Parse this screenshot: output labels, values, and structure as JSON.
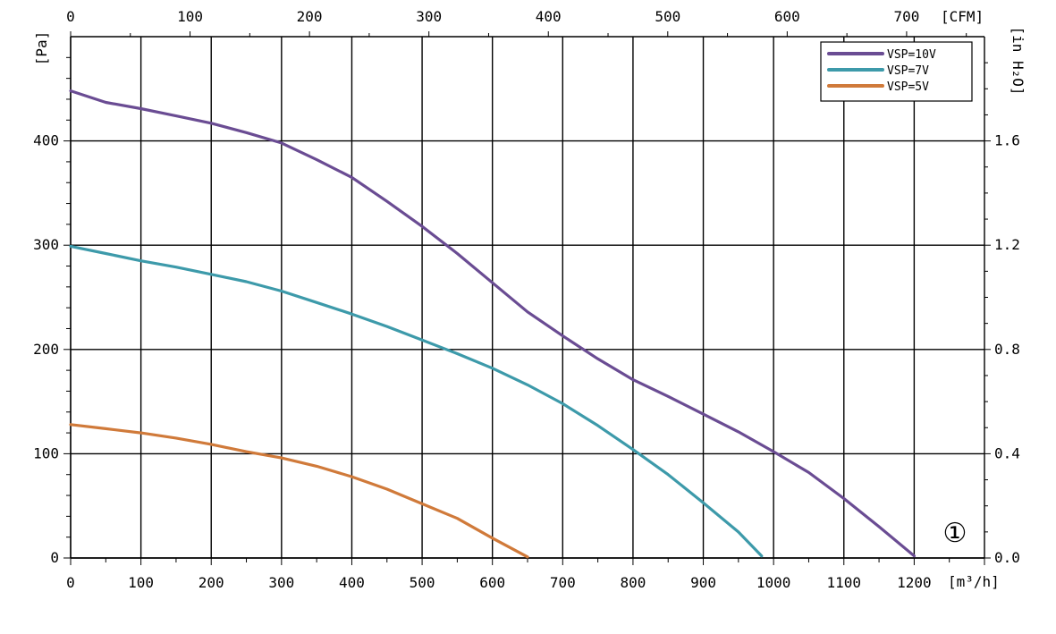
{
  "chart_data": {
    "type": "line",
    "x_label": "[m³/h]",
    "y_label": "[Pa]",
    "secondary_x_label": "[CFM]",
    "secondary_y_label": "[in H₂O]",
    "xlim": [
      0,
      1300
    ],
    "ylim": [
      0,
      500
    ],
    "secondary_xlim": [
      0,
      765.2
    ],
    "secondary_ylim": [
      0,
      2.0
    ],
    "x_ticks": [
      0,
      100,
      200,
      300,
      400,
      500,
      600,
      700,
      800,
      900,
      1000,
      1100,
      1200
    ],
    "y_ticks": [
      0,
      100,
      200,
      300,
      400
    ],
    "secondary_x_ticks": [
      0,
      100,
      200,
      300,
      400,
      500,
      600,
      700
    ],
    "secondary_y_ticks": [
      "0.0",
      "0.4",
      "0.8",
      "1.2",
      "1.6"
    ],
    "secondary_y_tick_values": [
      0,
      0.4,
      0.8,
      1.2,
      1.6
    ],
    "grid": true,
    "legend_position": "top-right",
    "curve_number": "①",
    "series": [
      {
        "name": "VSP=10V",
        "color": "#6a4c93",
        "x": [
          0,
          50,
          100,
          150,
          200,
          250,
          300,
          350,
          400,
          450,
          500,
          550,
          600,
          650,
          700,
          750,
          800,
          850,
          900,
          950,
          1000,
          1050,
          1100,
          1150,
          1200
        ],
        "y": [
          448,
          437,
          431,
          424,
          417,
          408,
          398,
          382,
          365,
          342,
          318,
          292,
          264,
          236,
          213,
          191,
          171,
          155,
          138,
          121,
          102,
          82,
          57,
          30,
          2
        ]
      },
      {
        "name": "VSP=7V",
        "color": "#3d9aaa",
        "x": [
          0,
          50,
          100,
          150,
          200,
          250,
          300,
          350,
          400,
          450,
          500,
          550,
          600,
          650,
          700,
          750,
          800,
          850,
          900,
          950,
          983
        ],
        "y": [
          299,
          292,
          285,
          279,
          272,
          265,
          256,
          245,
          234,
          222,
          209,
          196,
          182,
          166,
          148,
          127,
          104,
          80,
          53,
          25,
          2
        ]
      },
      {
        "name": "VSP=5V",
        "color": "#d07a3a",
        "x": [
          0,
          50,
          100,
          150,
          200,
          250,
          300,
          350,
          400,
          450,
          500,
          550,
          600,
          650
        ],
        "y": [
          128,
          124,
          120,
          115,
          109,
          102,
          96,
          88,
          78,
          66,
          52,
          38,
          19,
          1
        ]
      }
    ]
  }
}
